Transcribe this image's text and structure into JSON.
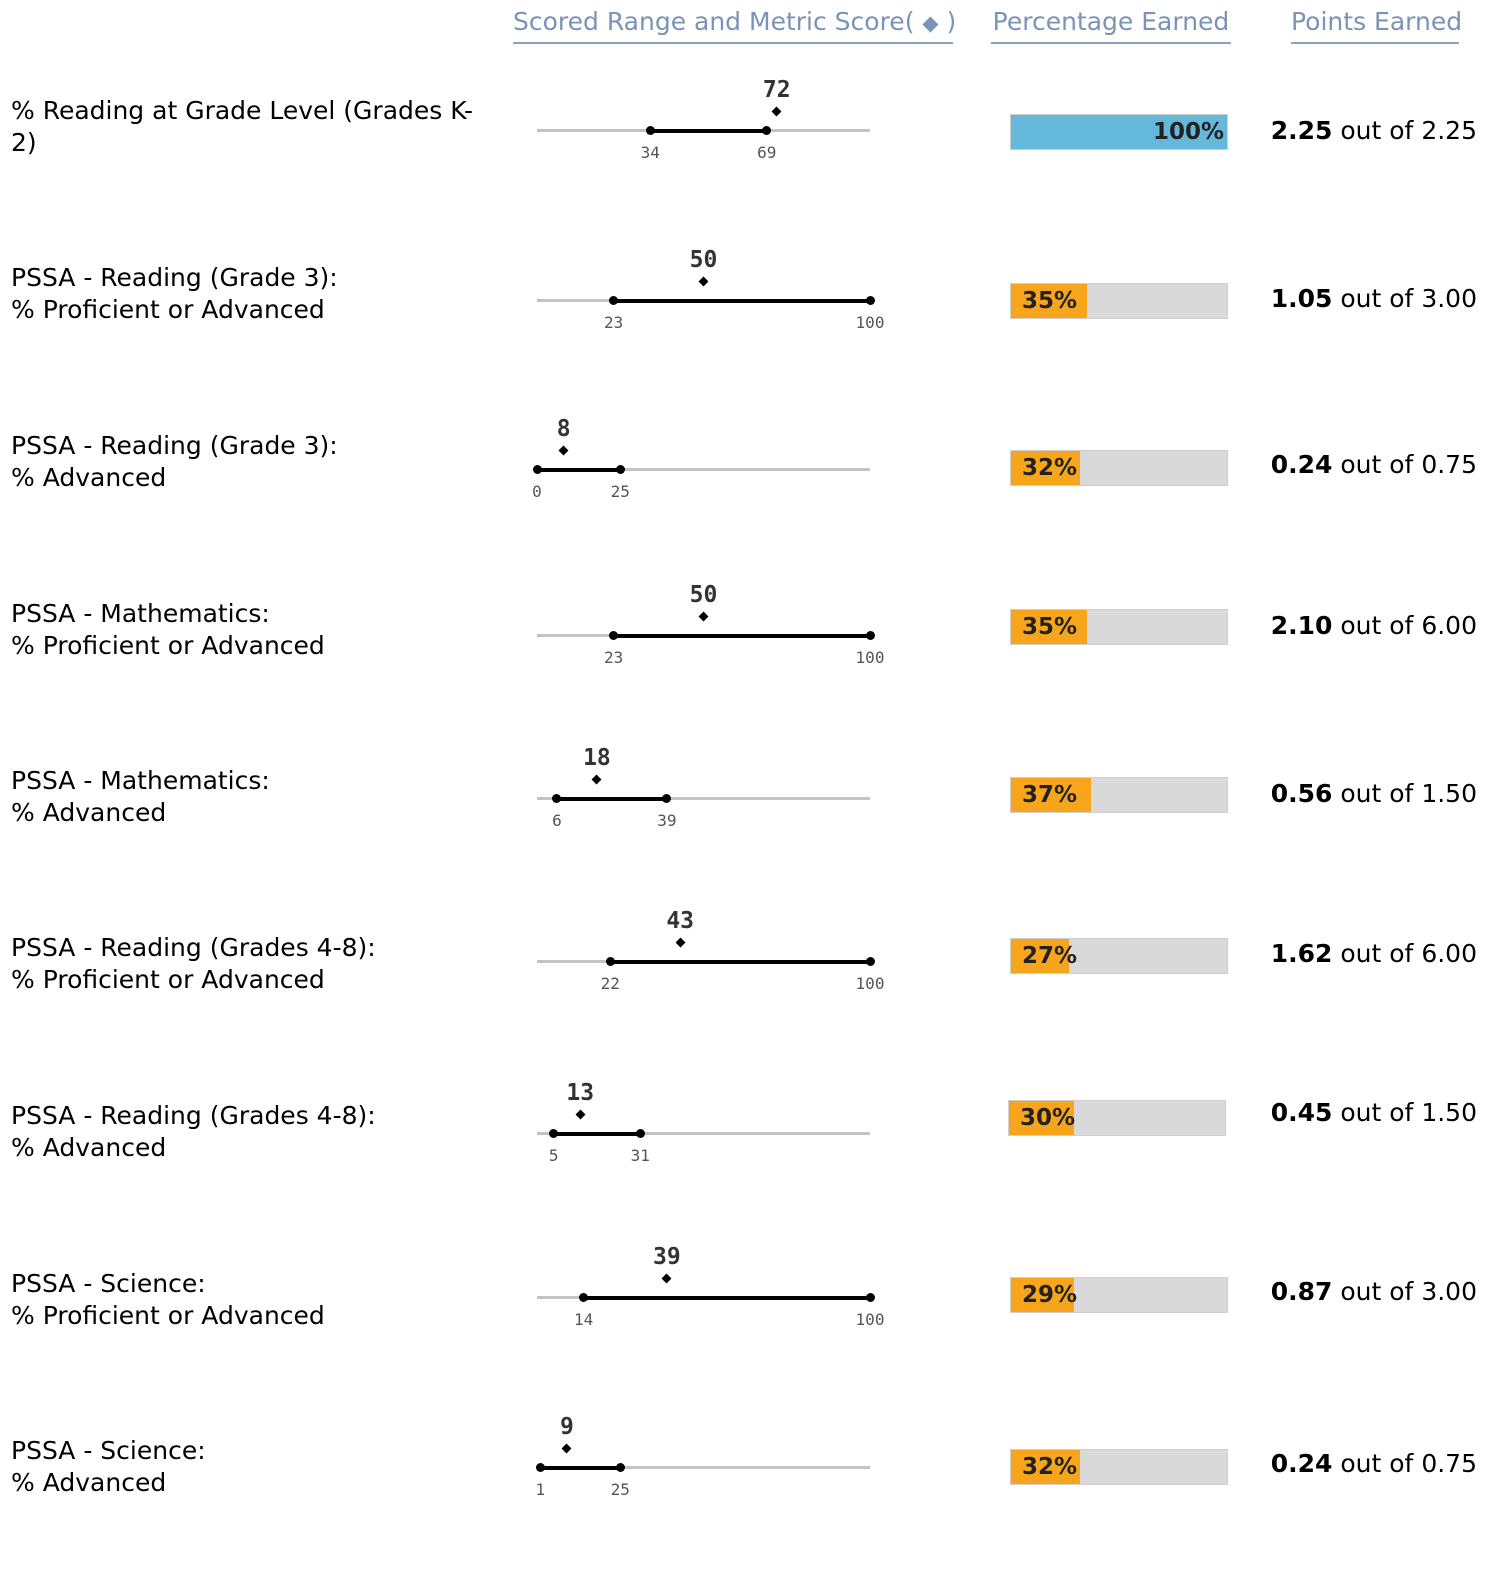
{
  "headers": {
    "range": "Scored Range and Metric Score",
    "range_open": "(",
    "range_diamond": "◆",
    "range_close": ")",
    "percentage": "Percentage Earned",
    "points": "Points Earned"
  },
  "colors": {
    "full": "#64b9db",
    "partial": "#f7a51c",
    "track": "#d9d9d9"
  },
  "out_of_text": "out of",
  "metrics": [
    {
      "label": "% Reading at Grade Level (Grades K-2)",
      "score": 72,
      "range_low": 34,
      "range_high": 69,
      "percent": 100,
      "percent_label": "100%",
      "points": "2.25",
      "max_points": "2.25"
    },
    {
      "label": "PSSA - Reading (Grade 3):\n% Proficient or Advanced",
      "score": 50,
      "range_low": 23,
      "range_high": 100,
      "percent": 35,
      "percent_label": "35%",
      "points": "1.05",
      "max_points": "3.00"
    },
    {
      "label": "PSSA - Reading (Grade 3):\n% Advanced",
      "score": 8,
      "range_low": 0,
      "range_high": 25,
      "percent": 32,
      "percent_label": "32%",
      "points": "0.24",
      "max_points": "0.75"
    },
    {
      "label": "PSSA - Mathematics:\n% Proficient or Advanced",
      "score": 50,
      "range_low": 23,
      "range_high": 100,
      "percent": 35,
      "percent_label": "35%",
      "points": "2.10",
      "max_points": "6.00"
    },
    {
      "label": "PSSA - Mathematics:\n% Advanced",
      "score": 18,
      "range_low": 6,
      "range_high": 39,
      "percent": 37,
      "percent_label": "37%",
      "points": "0.56",
      "max_points": "1.50"
    },
    {
      "label": "PSSA - Reading (Grades 4-8):\n% Proficient or Advanced",
      "score": 43,
      "range_low": 22,
      "range_high": 100,
      "percent": 27,
      "percent_label": "27%",
      "points": "1.62",
      "max_points": "6.00"
    },
    {
      "label": "PSSA - Reading (Grades 4-8):\n% Advanced",
      "score": 13,
      "range_low": 5,
      "range_high": 31,
      "percent": 30,
      "percent_label": "30%",
      "points": "0.45",
      "max_points": "1.50"
    },
    {
      "label": "PSSA - Science:\n% Proficient or Advanced",
      "score": 39,
      "range_low": 14,
      "range_high": 100,
      "percent": 29,
      "percent_label": "29%",
      "points": "0.87",
      "max_points": "3.00"
    },
    {
      "label": "PSSA - Science:\n% Advanced",
      "score": 9,
      "range_low": 1,
      "range_high": 25,
      "percent": 32,
      "percent_label": "32%",
      "points": "0.24",
      "max_points": "0.75"
    }
  ]
}
